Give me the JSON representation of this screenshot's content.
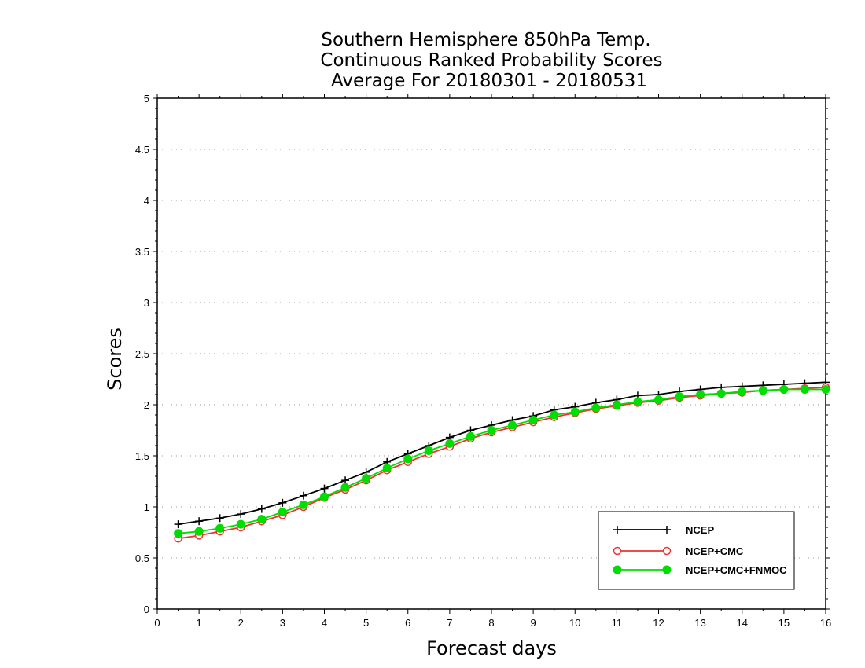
{
  "chart_data": {
    "type": "line",
    "title": [
      "Southern Hemisphere 850hPa Temp.",
      "Continuous Ranked Probability Scores",
      "Average For 20180301 - 20180531"
    ],
    "xlabel": "Forecast days",
    "ylabel": "Scores",
    "xlim": [
      0,
      16
    ],
    "ylim": [
      0,
      5
    ],
    "xticks": [
      "0",
      "1",
      "2",
      "3",
      "4",
      "5",
      "6",
      "7",
      "8",
      "9",
      "10",
      "11",
      "12",
      "13",
      "14",
      "15",
      "16"
    ],
    "yticks": [
      "0",
      "0.5",
      "1",
      "1.5",
      "2",
      "2.5",
      "3",
      "3.5",
      "4",
      "4.5",
      "5"
    ],
    "grid": true,
    "legend_position": "bottom-right",
    "x": [
      0.5,
      1,
      1.5,
      2,
      2.5,
      3,
      3.5,
      4,
      4.5,
      5,
      5.5,
      6,
      6.5,
      7,
      7.5,
      8,
      8.5,
      9,
      9.5,
      10,
      10.5,
      11,
      11.5,
      12,
      12.5,
      13,
      13.5,
      14,
      14.5,
      15,
      15.5,
      16
    ],
    "series": [
      {
        "name": "NCEP",
        "color": "#000000",
        "marker": "plus",
        "values": [
          0.83,
          0.86,
          0.89,
          0.93,
          0.98,
          1.04,
          1.11,
          1.18,
          1.26,
          1.34,
          1.44,
          1.52,
          1.6,
          1.68,
          1.75,
          1.8,
          1.85,
          1.89,
          1.95,
          1.98,
          2.02,
          2.05,
          2.09,
          2.1,
          2.13,
          2.15,
          2.17,
          2.18,
          2.19,
          2.2,
          2.21,
          2.22
        ]
      },
      {
        "name": "NCEP+CMC",
        "color": "#ee3333",
        "marker": "circle-open",
        "values": [
          0.69,
          0.72,
          0.76,
          0.8,
          0.86,
          0.92,
          1.0,
          1.09,
          1.17,
          1.26,
          1.36,
          1.44,
          1.52,
          1.59,
          1.67,
          1.73,
          1.78,
          1.83,
          1.88,
          1.92,
          1.96,
          1.99,
          2.02,
          2.04,
          2.07,
          2.09,
          2.11,
          2.12,
          2.14,
          2.15,
          2.16,
          2.17
        ]
      },
      {
        "name": "NCEP+CMC+FNMOC",
        "color": "#00dd00",
        "marker": "circle-filled",
        "values": [
          0.74,
          0.76,
          0.79,
          0.83,
          0.88,
          0.95,
          1.02,
          1.1,
          1.19,
          1.28,
          1.38,
          1.47,
          1.55,
          1.62,
          1.69,
          1.75,
          1.8,
          1.85,
          1.9,
          1.93,
          1.97,
          2.0,
          2.03,
          2.05,
          2.08,
          2.1,
          2.11,
          2.13,
          2.14,
          2.15,
          2.15,
          2.15
        ]
      }
    ]
  }
}
